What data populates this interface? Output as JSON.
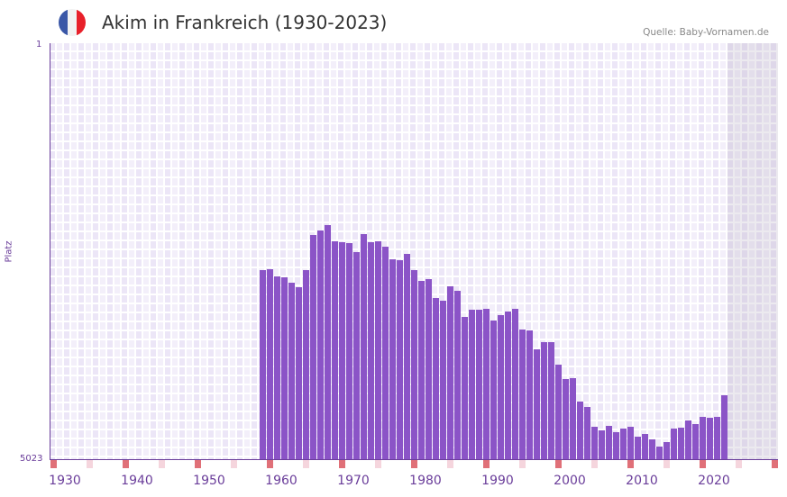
{
  "header": {
    "title": "Akim in Frankreich (1930-2023)",
    "source": "Quelle: Baby-Vornamen.de"
  },
  "colors": {
    "bar": "#8b54c7",
    "axis": "#6a3d9a",
    "marker_strong": "#e07078",
    "marker_light": "#f5d5dd",
    "flag": [
      "#3a57a7",
      "#f2f2f2",
      "#e8202a"
    ]
  },
  "chart_data": {
    "type": "bar",
    "title": "Akim in Frankreich (1930-2023)",
    "ylabel": "Platz",
    "yticks": [
      "1",
      "5023"
    ],
    "ylim": [
      1,
      5023
    ],
    "y_inverted": true,
    "xlim": [
      1929,
      2030
    ],
    "xticks": [
      "1930",
      "1940",
      "1950",
      "1960",
      "1970",
      "1980",
      "1990",
      "2000",
      "2010",
      "2020"
    ],
    "x_start": 1958,
    "values": [
      2740,
      2729,
      2816,
      2827,
      2892,
      2947,
      2740,
      2316,
      2262,
      2197,
      2393,
      2403,
      2414,
      2523,
      2306,
      2403,
      2393,
      2458,
      2610,
      2621,
      2545,
      2740,
      2871,
      2849,
      3077,
      3110,
      2936,
      2990,
      3306,
      3219,
      3219,
      3208,
      3349,
      3284,
      3240,
      3208,
      3458,
      3469,
      3697,
      3610,
      3610,
      3882,
      4056,
      4045,
      4327,
      4393,
      4632,
      4675,
      4621,
      4697,
      4653,
      4632,
      4751,
      4719,
      4784,
      4871,
      4817,
      4653,
      4642,
      4555,
      4599,
      4512,
      4523,
      4512,
      4251
    ],
    "future_from": 2023
  }
}
